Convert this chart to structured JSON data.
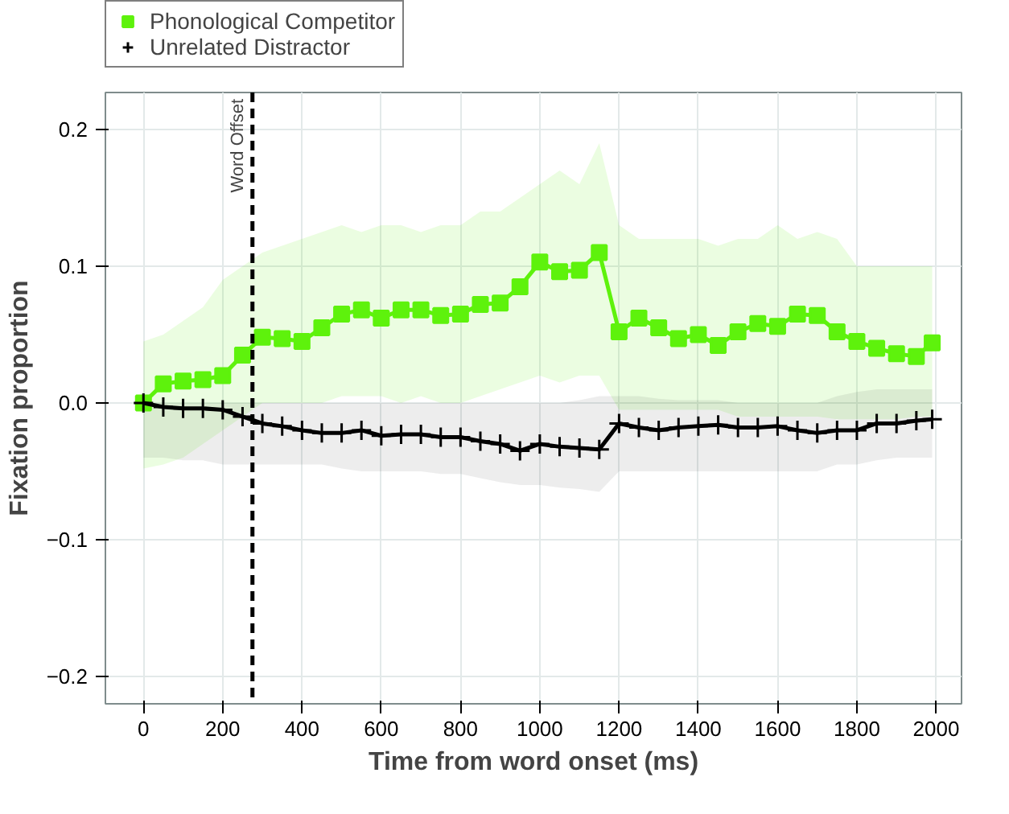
{
  "chart_data": {
    "type": "line",
    "xlabel": "Time from word onset (ms)",
    "ylabel": "Fixation proportion",
    "x": [
      0,
      50,
      100,
      150,
      200,
      250,
      300,
      350,
      400,
      450,
      500,
      550,
      600,
      650,
      700,
      750,
      800,
      850,
      900,
      950,
      1000,
      1050,
      1100,
      1150,
      1200,
      1250,
      1300,
      1350,
      1400,
      1450,
      1500,
      1550,
      1600,
      1650,
      1700,
      1750,
      1800,
      1850,
      1900,
      1950,
      1990
    ],
    "series": [
      {
        "name": "Phonological Competitor",
        "color": "#5ef20c",
        "marker": "square",
        "values": [
          0,
          0.014,
          0.016,
          0.017,
          0.02,
          0.035,
          0.048,
          0.047,
          0.045,
          0.055,
          0.065,
          0.068,
          0.062,
          0.068,
          0.068,
          0.064,
          0.065,
          0.072,
          0.073,
          0.085,
          0.103,
          0.096,
          0.097,
          0.11,
          0.052,
          0.062,
          0.055,
          0.047,
          0.05,
          0.042,
          0.052,
          0.058,
          0.056,
          0.065,
          0.064,
          0.052,
          0.045,
          0.04,
          0.036,
          0.034,
          0.044
        ],
        "upper": [
          0.045,
          0.05,
          0.06,
          0.07,
          0.09,
          0.1,
          0.11,
          0.115,
          0.12,
          0.125,
          0.13,
          0.125,
          0.13,
          0.13,
          0.125,
          0.13,
          0.13,
          0.14,
          0.14,
          0.15,
          0.16,
          0.17,
          0.16,
          0.19,
          0.13,
          0.12,
          0.12,
          0.12,
          0.12,
          0.115,
          0.12,
          0.12,
          0.13,
          0.12,
          0.125,
          0.12,
          0.1,
          0.1,
          0.1,
          0.1,
          0.1
        ],
        "lower": [
          -0.048,
          -0.045,
          -0.04,
          -0.03,
          -0.02,
          -0.01,
          0.0,
          0.0,
          0.0,
          0.0,
          0.005,
          0.005,
          0.005,
          0.0,
          0.005,
          0.0,
          0.0,
          0.005,
          0.01,
          0.015,
          0.02,
          0.015,
          0.02,
          0.02,
          -0.005,
          -0.005,
          -0.005,
          -0.005,
          -0.005,
          -0.005,
          -0.01,
          -0.01,
          -0.01,
          -0.01,
          -0.01,
          -0.012,
          -0.012,
          -0.012,
          -0.012,
          -0.01,
          -0.01
        ]
      },
      {
        "name": "Unrelated Distractor",
        "color": "#000000",
        "marker": "cross",
        "values": [
          0,
          -0.003,
          -0.004,
          -0.004,
          -0.005,
          -0.01,
          -0.015,
          -0.017,
          -0.02,
          -0.022,
          -0.022,
          -0.02,
          -0.024,
          -0.023,
          -0.023,
          -0.025,
          -0.025,
          -0.028,
          -0.03,
          -0.035,
          -0.03,
          -0.032,
          -0.033,
          -0.034,
          -0.015,
          -0.018,
          -0.02,
          -0.018,
          -0.017,
          -0.016,
          -0.018,
          -0.018,
          -0.017,
          -0.02,
          -0.022,
          -0.02,
          -0.02,
          -0.015,
          -0.015,
          -0.013,
          -0.012
        ],
        "upper": [
          0.0,
          0.0,
          0.0,
          0.0,
          0.0,
          0.0,
          0.0,
          0.0,
          0.0,
          0.0,
          0.0,
          0.0,
          0.0,
          0.0,
          0.0,
          0.0,
          0.0,
          0.0,
          0.0,
          0.0,
          0.0,
          0.0,
          0.002,
          0.005,
          0.005,
          0.005,
          0.003,
          0.002,
          0.002,
          0.002,
          0.0,
          0.0,
          0.0,
          0.0,
          0.0,
          0.005,
          0.008,
          0.01,
          0.01,
          0.01,
          0.01
        ],
        "lower": [
          -0.04,
          -0.04,
          -0.042,
          -0.042,
          -0.045,
          -0.045,
          -0.045,
          -0.045,
          -0.045,
          -0.045,
          -0.048,
          -0.05,
          -0.05,
          -0.05,
          -0.05,
          -0.052,
          -0.052,
          -0.055,
          -0.058,
          -0.06,
          -0.06,
          -0.062,
          -0.063,
          -0.065,
          -0.05,
          -0.05,
          -0.05,
          -0.05,
          -0.05,
          -0.05,
          -0.05,
          -0.05,
          -0.05,
          -0.05,
          -0.05,
          -0.045,
          -0.045,
          -0.042,
          -0.04,
          -0.04,
          -0.04
        ]
      }
    ],
    "xlim": [
      -96,
      2064
    ],
    "ylim": [
      -0.22,
      0.227
    ],
    "xticks": [
      0,
      200,
      400,
      600,
      800,
      1000,
      1200,
      1400,
      1600,
      1800,
      2000
    ],
    "yticks": [
      {
        "value": -0.2,
        "label": "−0.2"
      },
      {
        "value": -0.1,
        "label": "−0.1"
      },
      {
        "value": 0,
        "label": "0.0"
      },
      {
        "value": 0.1,
        "label": "0.1"
      },
      {
        "value": 0.2,
        "label": "0.2"
      }
    ],
    "ref_lines": [
      {
        "axis": "x",
        "value": 275,
        "label": "Word Offset",
        "color": "#000000",
        "line_style": "dashed"
      }
    ],
    "grid": true,
    "legend": "top left",
    "line_style": "solid"
  }
}
